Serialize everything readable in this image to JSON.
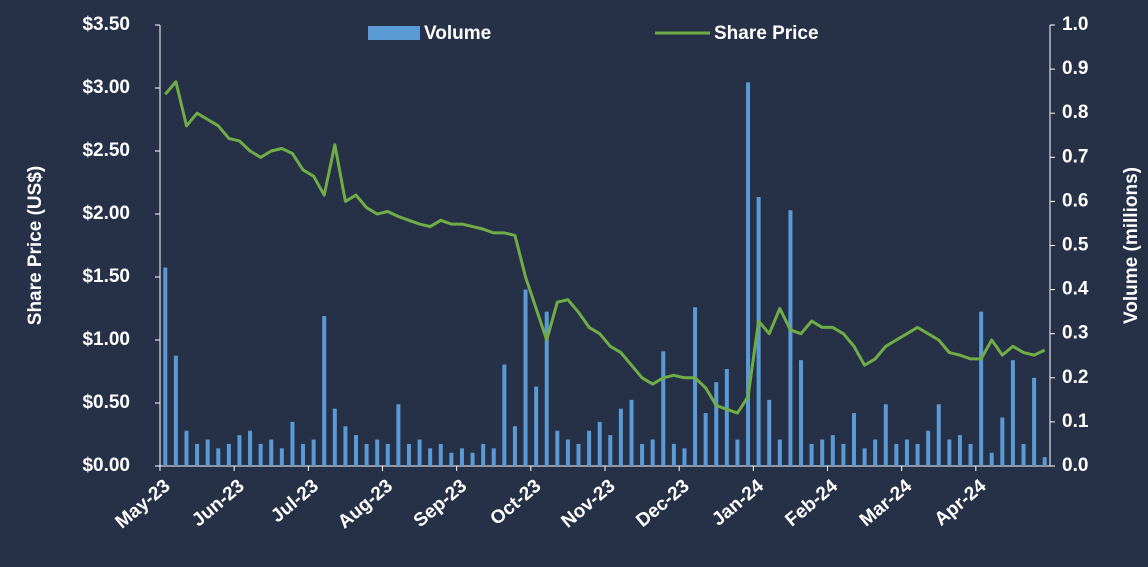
{
  "chart_data": {
    "type": "bar-line",
    "categories": [
      "May-23",
      null,
      null,
      null,
      null,
      null,
      null,
      "Jun-23",
      null,
      null,
      null,
      null,
      null,
      null,
      "Jul-23",
      null,
      null,
      null,
      null,
      null,
      null,
      "Aug-23",
      null,
      null,
      null,
      null,
      null,
      null,
      "Sep-23",
      null,
      null,
      null,
      null,
      null,
      null,
      "Oct-23",
      null,
      null,
      null,
      null,
      null,
      null,
      "Nov-23",
      null,
      null,
      null,
      null,
      null,
      null,
      "Dec-23",
      null,
      null,
      null,
      null,
      null,
      null,
      "Jan-24",
      null,
      null,
      null,
      null,
      null,
      null,
      "Feb-24",
      null,
      null,
      null,
      null,
      null,
      null,
      "Mar-24",
      null,
      null,
      null,
      null,
      null,
      null,
      "Apr-24",
      null,
      null,
      null,
      null,
      null,
      null
    ],
    "series": [
      {
        "name": "Volume",
        "type": "bar",
        "axis": "y2",
        "color": "#5b9bd5",
        "values": [
          0.45,
          0.25,
          0.08,
          0.05,
          0.06,
          0.04,
          0.05,
          0.07,
          0.08,
          0.05,
          0.06,
          0.04,
          0.1,
          0.05,
          0.06,
          0.34,
          0.13,
          0.09,
          0.07,
          0.05,
          0.06,
          0.05,
          0.14,
          0.05,
          0.06,
          0.04,
          0.05,
          0.03,
          0.04,
          0.03,
          0.05,
          0.04,
          0.23,
          0.09,
          0.4,
          0.18,
          0.35,
          0.08,
          0.06,
          0.05,
          0.08,
          0.1,
          0.07,
          0.13,
          0.15,
          0.05,
          0.06,
          0.26,
          0.05,
          0.04,
          0.36,
          0.12,
          0.19,
          0.22,
          0.06,
          0.87,
          0.61,
          0.15,
          0.06,
          0.58,
          0.24,
          0.05,
          0.06,
          0.07,
          0.05,
          0.12,
          0.04,
          0.06,
          0.14,
          0.05,
          0.06,
          0.05,
          0.08,
          0.14,
          0.06,
          0.07,
          0.05,
          0.35,
          0.03,
          0.11,
          0.24,
          0.05,
          0.2,
          0.02
        ]
      },
      {
        "name": "Share Price",
        "type": "line",
        "axis": "y",
        "color": "#70ad47",
        "values": [
          2.95,
          3.05,
          2.7,
          2.8,
          2.75,
          2.7,
          2.6,
          2.58,
          2.5,
          2.45,
          2.5,
          2.52,
          2.48,
          2.35,
          2.3,
          2.15,
          2.55,
          2.1,
          2.15,
          2.05,
          2.0,
          2.02,
          1.98,
          1.95,
          1.92,
          1.9,
          1.95,
          1.92,
          1.92,
          1.9,
          1.88,
          1.85,
          1.85,
          1.83,
          1.5,
          1.25,
          1.0,
          1.3,
          1.32,
          1.22,
          1.1,
          1.05,
          0.95,
          0.9,
          0.8,
          0.7,
          0.65,
          0.7,
          0.72,
          0.7,
          0.7,
          0.62,
          0.48,
          0.45,
          0.42,
          0.55,
          1.15,
          1.05,
          1.25,
          1.08,
          1.05,
          1.15,
          1.1,
          1.1,
          1.05,
          0.95,
          0.8,
          0.85,
          0.95,
          1.0,
          1.05,
          1.1,
          1.05,
          1.0,
          0.9,
          0.88,
          0.85,
          0.85,
          1.0,
          0.88,
          0.95,
          0.9,
          0.88,
          0.92
        ]
      }
    ],
    "y_label": "Share Price (US$)",
    "y2_label": "Volume (millions)",
    "ylim": [
      0,
      3.5
    ],
    "yticks": [
      {
        "value": 0,
        "label": "$0.00"
      },
      {
        "value": 0.5,
        "label": "$0.50"
      },
      {
        "value": 1,
        "label": "$1.00"
      },
      {
        "value": 1.5,
        "label": "$1.50"
      },
      {
        "value": 2,
        "label": "$2.00"
      },
      {
        "value": 2.5,
        "label": "$2.50"
      },
      {
        "value": 3,
        "label": "$3.00"
      },
      {
        "value": 3.5,
        "label": "$3.50"
      }
    ],
    "y2lim": [
      0,
      1
    ],
    "y2ticks": [
      {
        "value": 0,
        "label": "0.0"
      },
      0.1,
      0.2,
      0.3,
      0.4,
      0.5,
      0.6,
      0.7,
      0.8,
      0.9,
      {
        "value": 1,
        "label": "1.0"
      }
    ],
    "legend": "top",
    "grid": false
  }
}
